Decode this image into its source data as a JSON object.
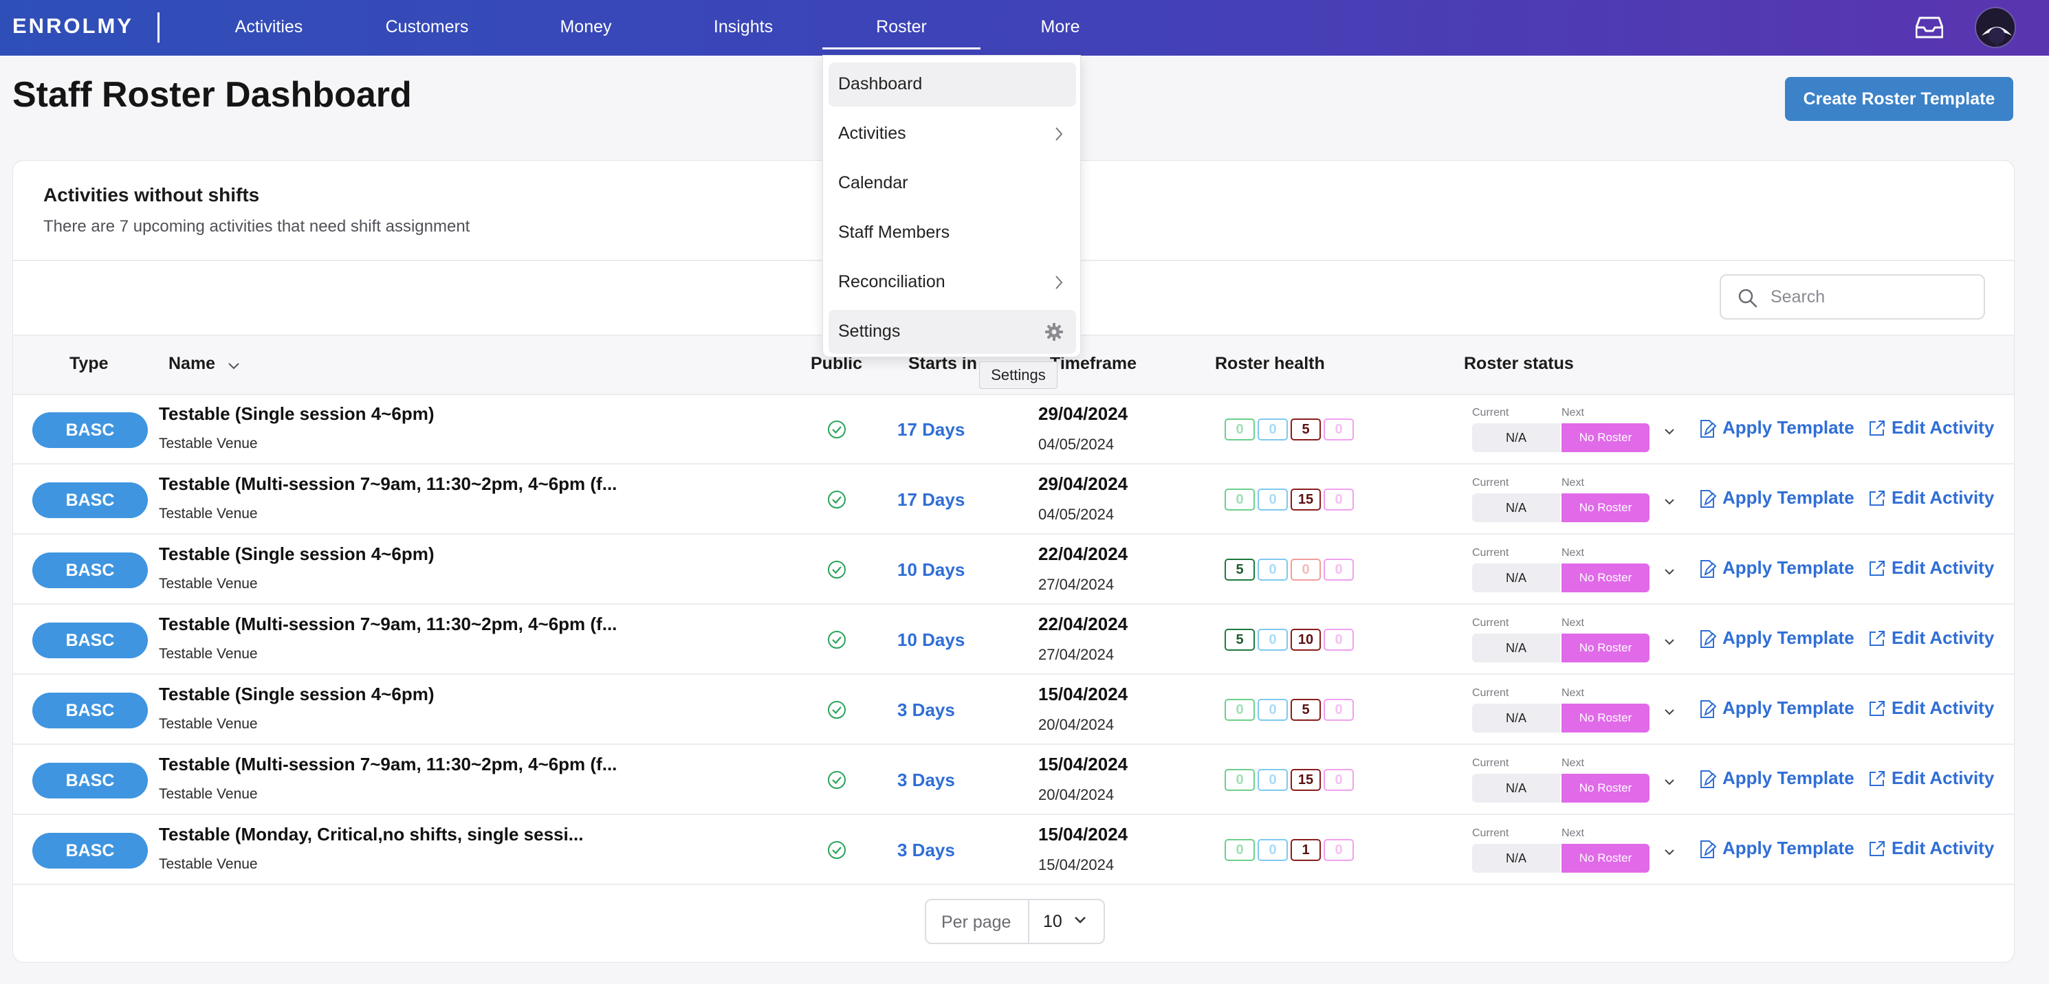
{
  "app": {
    "logo": "ENROLMY"
  },
  "nav": {
    "items": [
      {
        "label": "Activities"
      },
      {
        "label": "Customers"
      },
      {
        "label": "Money"
      },
      {
        "label": "Insights"
      },
      {
        "label": "Roster",
        "active": true
      },
      {
        "label": "More"
      }
    ]
  },
  "page": {
    "title": "Staff Roster Dashboard",
    "create_button": "Create Roster Template"
  },
  "card": {
    "title": "Activities without shifts",
    "subtitle": "There are 7 upcoming activities that need shift assignment",
    "search_placeholder": "Search"
  },
  "table": {
    "headers": {
      "type": "Type",
      "name": "Name",
      "public": "Public",
      "starts_in": "Starts in",
      "timeframe": "Timeframe",
      "roster_health": "Roster health",
      "roster_status": "Roster status"
    },
    "status_labels": {
      "current": "Current",
      "next": "Next"
    },
    "actions": {
      "apply": "Apply Template",
      "edit": "Edit Activity"
    },
    "rows": [
      {
        "type": "BASC",
        "name": "Testable (Single session 4~6pm)",
        "venue": "Testable Venue",
        "starts_in": "17 Days",
        "start": "29/04/2024",
        "end": "04/05/2024",
        "health": [
          "0",
          "0",
          "5",
          "0"
        ],
        "health_on": [
          false,
          false,
          true,
          false
        ],
        "current": "N/A",
        "next": "No Roster"
      },
      {
        "type": "BASC",
        "name": "Testable (Multi-session 7~9am, 11:30~2pm, 4~6pm (f...",
        "venue": "Testable Venue",
        "starts_in": "17 Days",
        "start": "29/04/2024",
        "end": "04/05/2024",
        "health": [
          "0",
          "0",
          "15",
          "0"
        ],
        "health_on": [
          false,
          false,
          true,
          false
        ],
        "current": "N/A",
        "next": "No Roster"
      },
      {
        "type": "BASC",
        "name": "Testable (Single session 4~6pm)",
        "venue": "Testable Venue",
        "starts_in": "10 Days",
        "start": "22/04/2024",
        "end": "27/04/2024",
        "health": [
          "5",
          "0",
          "0",
          "0"
        ],
        "health_on": [
          true,
          false,
          false,
          false
        ],
        "current": "N/A",
        "next": "No Roster"
      },
      {
        "type": "BASC",
        "name": "Testable (Multi-session 7~9am, 11:30~2pm, 4~6pm (f...",
        "venue": "Testable Venue",
        "starts_in": "10 Days",
        "start": "22/04/2024",
        "end": "27/04/2024",
        "health": [
          "5",
          "0",
          "10",
          "0"
        ],
        "health_on": [
          true,
          false,
          true,
          false
        ],
        "current": "N/A",
        "next": "No Roster"
      },
      {
        "type": "BASC",
        "name": "Testable (Single session 4~6pm)",
        "venue": "Testable Venue",
        "starts_in": "3 Days",
        "start": "15/04/2024",
        "end": "20/04/2024",
        "health": [
          "0",
          "0",
          "5",
          "0"
        ],
        "health_on": [
          false,
          false,
          true,
          false
        ],
        "current": "N/A",
        "next": "No Roster"
      },
      {
        "type": "BASC",
        "name": "Testable (Multi-session 7~9am, 11:30~2pm, 4~6pm (f...",
        "venue": "Testable Venue",
        "starts_in": "3 Days",
        "start": "15/04/2024",
        "end": "20/04/2024",
        "health": [
          "0",
          "0",
          "15",
          "0"
        ],
        "health_on": [
          false,
          false,
          true,
          false
        ],
        "current": "N/A",
        "next": "No Roster"
      },
      {
        "type": "BASC",
        "name": "Testable (Monday, Critical,no shifts, single sessi...",
        "venue": "Testable Venue",
        "starts_in": "3 Days",
        "start": "15/04/2024",
        "end": "15/04/2024",
        "health": [
          "0",
          "0",
          "1",
          "0"
        ],
        "health_on": [
          false,
          false,
          true,
          false
        ],
        "current": "N/A",
        "next": "No Roster"
      }
    ]
  },
  "pagination": {
    "per_page_label": "Per page",
    "per_page_value": "10"
  },
  "roster_menu": {
    "items": [
      {
        "label": "Dashboard",
        "highlighted": true,
        "icon": ""
      },
      {
        "label": "Activities",
        "icon": "chevron-right-icon"
      },
      {
        "label": "Calendar",
        "icon": ""
      },
      {
        "label": "Staff Members",
        "icon": ""
      },
      {
        "label": "Reconciliation",
        "icon": "chevron-right-icon"
      },
      {
        "label": "Settings",
        "highlighted": true,
        "icon": "gear-icon"
      }
    ],
    "tooltip": "Settings"
  },
  "colors": {
    "nav_start": "#2f4fb8",
    "nav_end": "#5a35b0",
    "primary": "#3b82c9",
    "badge": "#3f95e0",
    "link": "#2f6ed6",
    "no_roster": "#e06ae8"
  }
}
